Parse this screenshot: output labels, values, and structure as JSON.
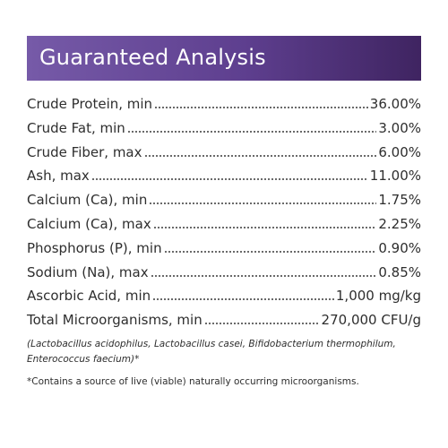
{
  "header": {
    "title": "Guaranteed Analysis"
  },
  "table": {
    "rows": [
      [
        "Crude Protein, min",
        "36.00%"
      ],
      [
        "Crude Fat, min",
        "3.00%"
      ],
      [
        "Crude Fiber, max",
        "6.00%"
      ],
      [
        "Ash, max",
        "11.00%"
      ],
      [
        "Calcium (Ca), min",
        "1.75%"
      ],
      [
        "Calcium (Ca), max",
        "2.25%"
      ],
      [
        "Phosphorus (P), min",
        "0.90%"
      ],
      [
        "Sodium (Na), max",
        "0.85%"
      ],
      [
        "Ascorbic Acid, min",
        "1,000 mg/kg"
      ],
      [
        "Total Microorganisms, min",
        "270,000 CFU/g"
      ]
    ]
  },
  "notes": {
    "organisms": "(Lactobacillus acidophilus, Lactobacillus casei, Bifidobacterium thermophilum, Enterococcus faecium)*",
    "footnote": "*Contains a source of live (viable) naturally occurring microorganisms."
  }
}
